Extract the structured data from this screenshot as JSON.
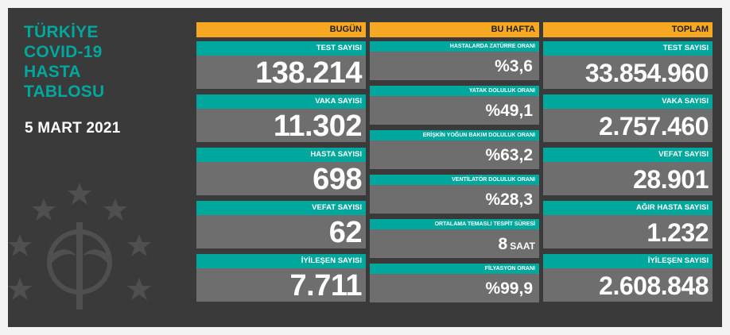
{
  "title": {
    "lines": [
      "TÜRKİYE",
      "COVID-19",
      "HASTA",
      "TABLOSU"
    ]
  },
  "date": "5 MART 2021",
  "columns": {
    "bugun": {
      "header": "BUGÜN",
      "cards": [
        {
          "label": "TEST SAYISI",
          "value": "138.214"
        },
        {
          "label": "VAKA SAYISI",
          "value": "11.302"
        },
        {
          "label": "HASTA SAYISI",
          "value": "698"
        },
        {
          "label": "VEFAT SAYISI",
          "value": "62"
        },
        {
          "label": "İYİLEŞEN SAYISI",
          "value": "7.711"
        }
      ]
    },
    "bu_hafta": {
      "header": "BU HAFTA",
      "cards": [
        {
          "label": "HASTALARDA ZATÜRRE ORANI",
          "value": "%3,6",
          "unit": ""
        },
        {
          "label": "YATAK DOLULUK ORANI",
          "value": "%49,1",
          "unit": ""
        },
        {
          "label": "ERİŞKİN YOĞUN BAKIM DOLULUK ORANI",
          "value": "%63,2",
          "unit": ""
        },
        {
          "label": "VENTİLATÖR DOLULUK ORANI",
          "value": "%28,3",
          "unit": ""
        },
        {
          "label": "ORTALAMA TEMASLI TESPİT SÜRESİ",
          "value": "8",
          "unit": "SAAT"
        },
        {
          "label": "FİLYASYON ORANI",
          "value": "%99,9",
          "unit": ""
        }
      ]
    },
    "toplam": {
      "header": "TOPLAM",
      "cards": [
        {
          "label": "TEST SAYISI",
          "value": "33.854.960"
        },
        {
          "label": "VAKA SAYISI",
          "value": "2.757.460"
        },
        {
          "label": "VEFAT SAYISI",
          "value": "28.901"
        },
        {
          "label": "AĞIR HASTA SAYISI",
          "value": "1.232"
        },
        {
          "label": "İYİLEŞEN SAYISI",
          "value": "2.608.848"
        }
      ]
    }
  },
  "colors": {
    "background": "#3a3a3a",
    "accent_teal": "#00a79d",
    "header_orange": "#f7a823",
    "value_box": "#6e6e6e"
  },
  "icons": {
    "emblem": "health-ministry-emblem"
  }
}
